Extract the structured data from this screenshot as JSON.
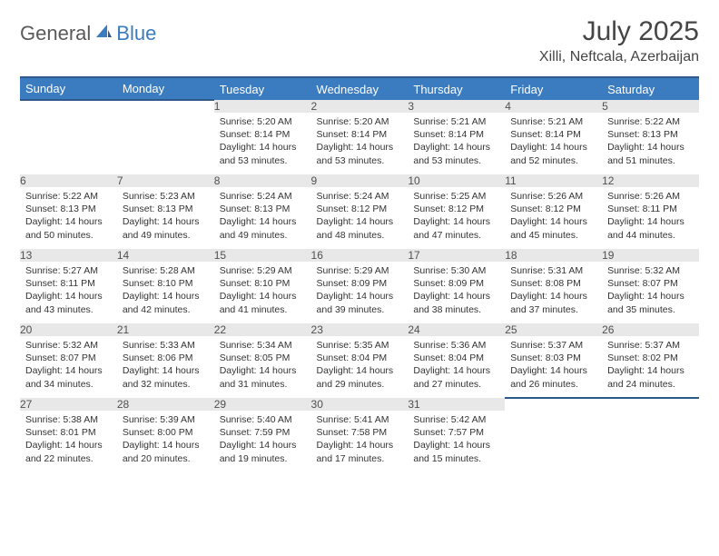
{
  "logo": {
    "general": "General",
    "blue": "Blue"
  },
  "title": "July 2025",
  "location": "Xilli, Neftcala, Azerbaijan",
  "colors": {
    "header_bg": "#3b7bbf",
    "header_border": "#2d5a8a",
    "daynum_bg": "#e8e8e8",
    "text": "#333333",
    "title_text": "#454545",
    "logo_gray": "#5a5a5a",
    "logo_blue": "#3b7bbf"
  },
  "weekdays": [
    "Sunday",
    "Monday",
    "Tuesday",
    "Wednesday",
    "Thursday",
    "Friday",
    "Saturday"
  ],
  "weeks": [
    [
      null,
      null,
      {
        "n": "1",
        "sr": "5:20 AM",
        "ss": "8:14 PM",
        "dl": "14 hours and 53 minutes."
      },
      {
        "n": "2",
        "sr": "5:20 AM",
        "ss": "8:14 PM",
        "dl": "14 hours and 53 minutes."
      },
      {
        "n": "3",
        "sr": "5:21 AM",
        "ss": "8:14 PM",
        "dl": "14 hours and 53 minutes."
      },
      {
        "n": "4",
        "sr": "5:21 AM",
        "ss": "8:14 PM",
        "dl": "14 hours and 52 minutes."
      },
      {
        "n": "5",
        "sr": "5:22 AM",
        "ss": "8:13 PM",
        "dl": "14 hours and 51 minutes."
      }
    ],
    [
      {
        "n": "6",
        "sr": "5:22 AM",
        "ss": "8:13 PM",
        "dl": "14 hours and 50 minutes."
      },
      {
        "n": "7",
        "sr": "5:23 AM",
        "ss": "8:13 PM",
        "dl": "14 hours and 49 minutes."
      },
      {
        "n": "8",
        "sr": "5:24 AM",
        "ss": "8:13 PM",
        "dl": "14 hours and 49 minutes."
      },
      {
        "n": "9",
        "sr": "5:24 AM",
        "ss": "8:12 PM",
        "dl": "14 hours and 48 minutes."
      },
      {
        "n": "10",
        "sr": "5:25 AM",
        "ss": "8:12 PM",
        "dl": "14 hours and 47 minutes."
      },
      {
        "n": "11",
        "sr": "5:26 AM",
        "ss": "8:12 PM",
        "dl": "14 hours and 45 minutes."
      },
      {
        "n": "12",
        "sr": "5:26 AM",
        "ss": "8:11 PM",
        "dl": "14 hours and 44 minutes."
      }
    ],
    [
      {
        "n": "13",
        "sr": "5:27 AM",
        "ss": "8:11 PM",
        "dl": "14 hours and 43 minutes."
      },
      {
        "n": "14",
        "sr": "5:28 AM",
        "ss": "8:10 PM",
        "dl": "14 hours and 42 minutes."
      },
      {
        "n": "15",
        "sr": "5:29 AM",
        "ss": "8:10 PM",
        "dl": "14 hours and 41 minutes."
      },
      {
        "n": "16",
        "sr": "5:29 AM",
        "ss": "8:09 PM",
        "dl": "14 hours and 39 minutes."
      },
      {
        "n": "17",
        "sr": "5:30 AM",
        "ss": "8:09 PM",
        "dl": "14 hours and 38 minutes."
      },
      {
        "n": "18",
        "sr": "5:31 AM",
        "ss": "8:08 PM",
        "dl": "14 hours and 37 minutes."
      },
      {
        "n": "19",
        "sr": "5:32 AM",
        "ss": "8:07 PM",
        "dl": "14 hours and 35 minutes."
      }
    ],
    [
      {
        "n": "20",
        "sr": "5:32 AM",
        "ss": "8:07 PM",
        "dl": "14 hours and 34 minutes."
      },
      {
        "n": "21",
        "sr": "5:33 AM",
        "ss": "8:06 PM",
        "dl": "14 hours and 32 minutes."
      },
      {
        "n": "22",
        "sr": "5:34 AM",
        "ss": "8:05 PM",
        "dl": "14 hours and 31 minutes."
      },
      {
        "n": "23",
        "sr": "5:35 AM",
        "ss": "8:04 PM",
        "dl": "14 hours and 29 minutes."
      },
      {
        "n": "24",
        "sr": "5:36 AM",
        "ss": "8:04 PM",
        "dl": "14 hours and 27 minutes."
      },
      {
        "n": "25",
        "sr": "5:37 AM",
        "ss": "8:03 PM",
        "dl": "14 hours and 26 minutes."
      },
      {
        "n": "26",
        "sr": "5:37 AM",
        "ss": "8:02 PM",
        "dl": "14 hours and 24 minutes."
      }
    ],
    [
      {
        "n": "27",
        "sr": "5:38 AM",
        "ss": "8:01 PM",
        "dl": "14 hours and 22 minutes."
      },
      {
        "n": "28",
        "sr": "5:39 AM",
        "ss": "8:00 PM",
        "dl": "14 hours and 20 minutes."
      },
      {
        "n": "29",
        "sr": "5:40 AM",
        "ss": "7:59 PM",
        "dl": "14 hours and 19 minutes."
      },
      {
        "n": "30",
        "sr": "5:41 AM",
        "ss": "7:58 PM",
        "dl": "14 hours and 17 minutes."
      },
      {
        "n": "31",
        "sr": "5:42 AM",
        "ss": "7:57 PM",
        "dl": "14 hours and 15 minutes."
      },
      null,
      null
    ]
  ],
  "labels": {
    "sunrise": "Sunrise:",
    "sunset": "Sunset:",
    "daylight": "Daylight:"
  }
}
